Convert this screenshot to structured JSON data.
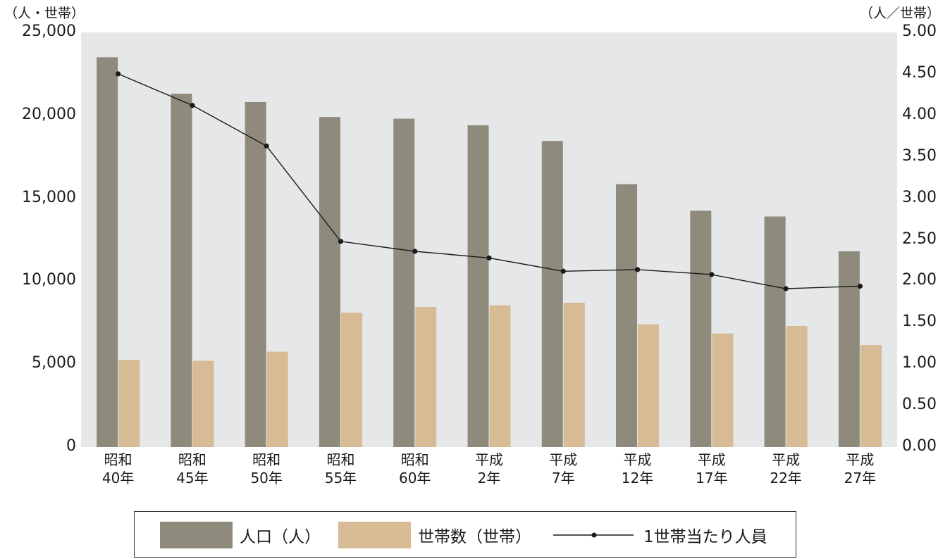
{
  "chart_data": {
    "type": "bar",
    "left_axis_unit": "（人・世帯）",
    "right_axis_unit": "（人／世帯）",
    "left_ticks": [
      "25,000",
      "20,000",
      "15,000",
      "10,000",
      "5,000",
      "0"
    ],
    "right_ticks": [
      "5.00",
      "4.50",
      "4.00",
      "3.50",
      "3.00",
      "2.50",
      "2.00",
      "1.50",
      "1.00",
      "0.50",
      "0.00"
    ],
    "categories": [
      [
        "昭和",
        "40年"
      ],
      [
        "昭和",
        "45年"
      ],
      [
        "昭和",
        "50年"
      ],
      [
        "昭和",
        "55年"
      ],
      [
        "昭和",
        "60年"
      ],
      [
        "平成",
        "2年"
      ],
      [
        "平成",
        "7年"
      ],
      [
        "平成",
        "12年"
      ],
      [
        "平成",
        "17年"
      ],
      [
        "平成",
        "22年"
      ],
      [
        "平成",
        "27年"
      ]
    ],
    "ylim_left": [
      0,
      25000
    ],
    "ylim_right": [
      0,
      5.0
    ],
    "series": [
      {
        "name": "人口（人）",
        "type": "bar",
        "axis": "left",
        "color": "#8e8b7d",
        "values": [
          23500,
          21300,
          20800,
          19900,
          19800,
          19400,
          18450,
          15850,
          14250,
          13900,
          11800
        ]
      },
      {
        "name": "世帯数（世帯）",
        "type": "bar",
        "axis": "left",
        "color": "#d6bb95",
        "values": [
          5250,
          5200,
          5750,
          8100,
          8450,
          8550,
          8700,
          7400,
          6850,
          7300,
          6150
        ]
      },
      {
        "name": "1世帯当たり人員",
        "type": "line",
        "axis": "right",
        "color": "#1a1a1a",
        "values": [
          4.5,
          4.12,
          3.63,
          2.48,
          2.36,
          2.28,
          2.12,
          2.14,
          2.08,
          1.91,
          1.94
        ]
      }
    ],
    "plot_background": "#e6e7e8",
    "legend": "bottom"
  }
}
